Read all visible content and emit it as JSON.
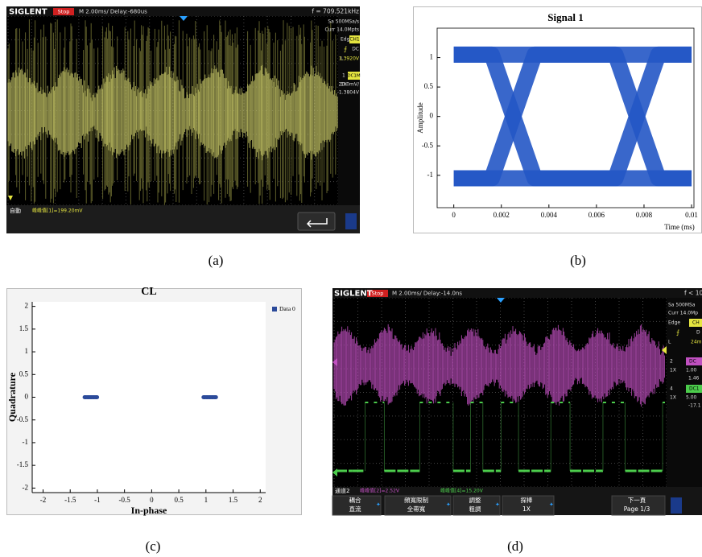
{
  "figure": {
    "captions": [
      "(a)",
      "(b)",
      "(c)",
      "(d)"
    ]
  },
  "scope_a": {
    "brand": "SIGLENT",
    "state": "Stop",
    "timebase": "M 2.00ms/ Delay:-680us",
    "frequency": "f = 709.521kHz",
    "sample_rate": "Sa 500MSa/s",
    "memory": "Curr 14.0Mpts",
    "trigger_type": "Edge",
    "trigger_source": "CH1",
    "trigger_coupling": "DC",
    "level_key": "L",
    "trigger_level": "1.3920V",
    "channel": "1",
    "channel_coupling": "DC1M",
    "probe": "1X",
    "scale": "20.0mV/",
    "offset": "-1.3804V",
    "mode": "自動",
    "measurement": "峰峰值[1]=199.20mV"
  },
  "scope_d": {
    "brand": "SIGLENT",
    "state": "Stop",
    "timebase": "M 2.00ms/ Delay:-14.0ns",
    "frequency": "f < 10",
    "sample_rate": "Sa 500MSa",
    "memory": "Curr 14.0Mp",
    "trigger_type": "Edge",
    "trigger_source": "CH",
    "trigger_coupling": "D",
    "level_key": "L",
    "trigger_level": "24m",
    "ch2": "2",
    "ch2_coupling": "DC",
    "ch2_probe": "1X",
    "ch2_scale": "1.00",
    "ch2_offset": "1.46",
    "ch4": "4",
    "ch4_coupling": "DC1",
    "ch4_probe": "1X",
    "ch4_scale": "5.00",
    "ch4_offset": "-17.1",
    "channel_label": "通道2",
    "measure_2": "峰峰值[2]=2.52V",
    "measure_4": "峰峰值[4]=15.20V",
    "menu": [
      [
        "耦合",
        "直流"
      ],
      [
        "頻寬限制",
        "全帶寬"
      ],
      [
        "調整",
        "粗調"
      ],
      [
        "探棒",
        "1X"
      ],
      [
        "下一頁",
        "Page 1/3"
      ]
    ]
  },
  "chart_data": [
    {
      "type": "eye",
      "title": "Signal 1",
      "x_label": "Time (ms)",
      "y_label": "Amplitude",
      "color": "#2457c5",
      "x": [
        0,
        0.0016,
        0.0034,
        0.0068,
        0.0086,
        0.01
      ],
      "series": [
        {
          "values": [
            1.05,
            1.05,
            1.05,
            1.05,
            1.05,
            1.05
          ]
        },
        {
          "values": [
            -1.05,
            -1.05,
            -1.05,
            -1.05,
            -1.05,
            -1.05
          ]
        },
        {
          "values": [
            1.05,
            1.05,
            -1.05,
            -1.05,
            1.05,
            1.05
          ]
        },
        {
          "values": [
            -1.05,
            -1.05,
            1.05,
            1.05,
            -1.05,
            -1.05
          ]
        }
      ],
      "xlim": [
        -0.0007,
        0.0101
      ],
      "ylim": [
        -1.55,
        1.5
      ],
      "xticks": [
        0,
        0.002,
        0.004,
        0.006,
        0.008,
        0.01
      ],
      "yticks": [
        -1,
        -0.5,
        0,
        0.5,
        1
      ]
    },
    {
      "type": "scatter",
      "title": "CL",
      "x_label": "In-phase",
      "y_label": "Quadrature",
      "legend": "top-right",
      "series": [
        {
          "name": "Data 0",
          "color": "#2b4a9a",
          "x": [
            -1.22,
            -1.17,
            -1.12,
            -1.07,
            -1.02,
            0.97,
            1.02,
            1.07,
            1.12,
            1.17
          ],
          "values": [
            0,
            0,
            0,
            0,
            0,
            0,
            0,
            0,
            0,
            0
          ]
        }
      ],
      "xlim": [
        -2.2,
        2.1
      ],
      "ylim": [
        -2.1,
        2.1
      ],
      "xticks": [
        -2,
        -1.5,
        -1,
        -0.5,
        0,
        0.5,
        1,
        1.5,
        2
      ],
      "yticks": [
        -2,
        -1.5,
        -1,
        -0.5,
        0,
        0.5,
        1,
        1.5,
        2
      ]
    }
  ]
}
